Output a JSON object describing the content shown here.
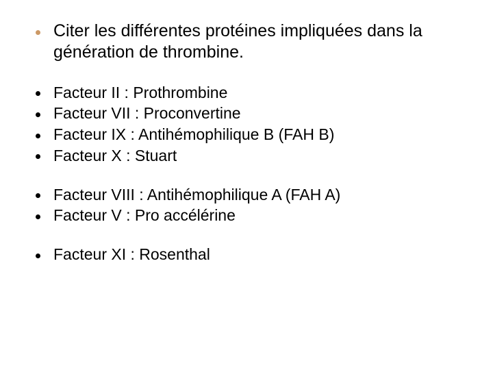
{
  "title": "Citer les différentes protéines impliquées dans la génération de thrombine.",
  "groups": [
    {
      "items": [
        "Facteur II : Prothrombine",
        "Facteur VII : Proconvertine",
        "Facteur IX : Antihémophilique B (FAH B)",
        "Facteur X : Stuart"
      ]
    },
    {
      "items": [
        "Facteur VIII : Antihémophilique A (FAH A)",
        "Facteur V : Pro accélérine"
      ]
    },
    {
      "items": [
        "Facteur XI : Rosenthal"
      ]
    }
  ],
  "colors": {
    "title_bullet": "#cc9966",
    "body_bullet": "#000000",
    "text": "#000000",
    "background": "#ffffff"
  },
  "typography": {
    "font_family": "Comic Sans MS",
    "title_fontsize_pt": 19,
    "body_fontsize_pt": 17
  }
}
